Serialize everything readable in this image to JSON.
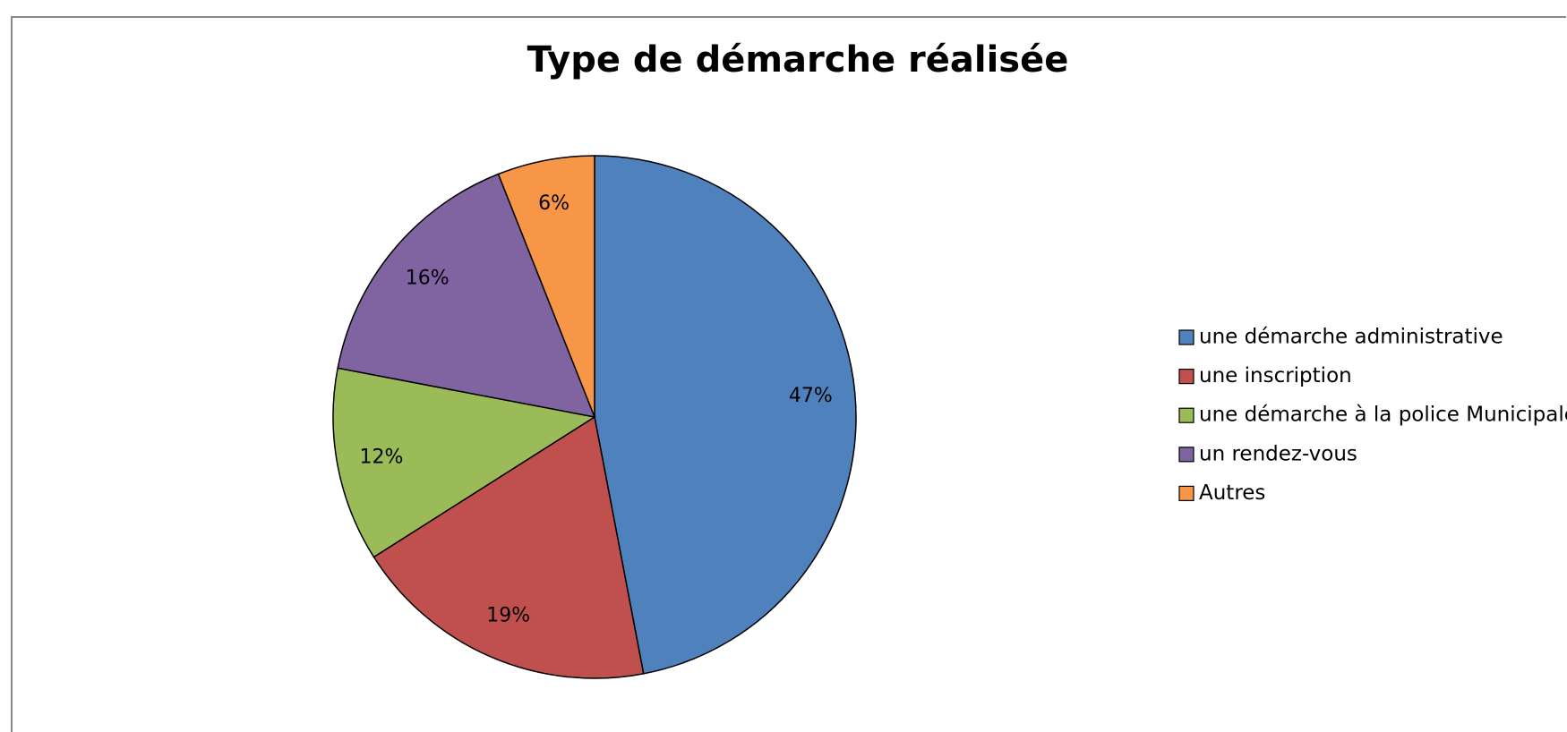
{
  "chart_data": {
    "type": "pie",
    "title": "Type de démarche réalisée",
    "categories": [
      "une démarche administrative",
      "une inscription",
      "une démarche à la police Municipale",
      "un rendez-vous",
      "Autres"
    ],
    "values": [
      47,
      19,
      12,
      16,
      6
    ],
    "value_labels": [
      "47%",
      "19%",
      "12%",
      "16%",
      "6%"
    ],
    "colors": [
      "#4f81bd",
      "#c0504d",
      "#9bbb59",
      "#8064a2",
      "#f79646"
    ],
    "legend": "right"
  }
}
